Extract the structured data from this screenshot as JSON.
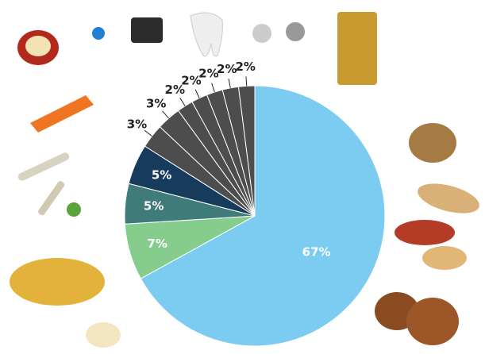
{
  "chart_data": {
    "type": "pie",
    "values": [
      67,
      7,
      5,
      5,
      3,
      3,
      2,
      2,
      2,
      2,
      2
    ],
    "value_labels": [
      "67%",
      "7%",
      "5%",
      "5%",
      "3%",
      "3%",
      "2%",
      "2%",
      "2%",
      "2%",
      "2%"
    ],
    "colors": [
      "#7ccbf0",
      "#86cc8c",
      "#3f7b78",
      "#173b5c",
      "#4d4d4d",
      "#4d4d4d",
      "#4d4d4d",
      "#4d4d4d",
      "#4d4d4d",
      "#4d4d4d",
      "#4d4d4d"
    ]
  }
}
